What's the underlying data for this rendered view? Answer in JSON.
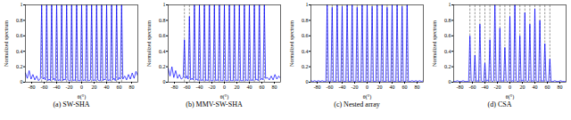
{
  "chart_data": [
    {
      "type": "line",
      "title": "(a) SW-SHA",
      "x_label": "θ(°)",
      "y_label": "Normalized spectrum",
      "color": "#0000ff",
      "xlim": [
        -90,
        90
      ],
      "xticks": [
        -80,
        -60,
        -40,
        -20,
        0,
        20,
        40,
        60,
        80
      ],
      "ylim": [
        0,
        1
      ],
      "yticks": [
        0,
        0.2,
        0.4,
        0.6,
        0.8,
        1
      ],
      "reference_angles": [
        -64,
        -56,
        -48,
        -40,
        -32,
        -24,
        -16,
        -8,
        0,
        8,
        16,
        24,
        32,
        40,
        48,
        56,
        64
      ],
      "x": [
        -90,
        -87,
        -84,
        -81,
        -78,
        -75,
        -72,
        -69,
        -66,
        -64,
        -62,
        -60,
        -58,
        -56,
        -54,
        -52,
        -50,
        -48,
        -46,
        -44,
        -42,
        -40,
        -38,
        -36,
        -34,
        -32,
        -30,
        -28,
        -26,
        -24,
        -22,
        -20,
        -18,
        -16,
        -14,
        -12,
        -10,
        -8,
        -6,
        -4,
        -2,
        0,
        2,
        4,
        6,
        8,
        10,
        12,
        14,
        16,
        18,
        20,
        22,
        24,
        26,
        28,
        30,
        32,
        34,
        36,
        38,
        40,
        42,
        44,
        46,
        48,
        50,
        52,
        54,
        56,
        58,
        60,
        62,
        64,
        66,
        69,
        72,
        75,
        78,
        81,
        84,
        87,
        90
      ],
      "values": [
        0.12,
        0.05,
        0.15,
        0.04,
        0.1,
        0.03,
        0.08,
        0.02,
        0.05,
        1,
        0.04,
        0.06,
        0.03,
        1,
        0.02,
        0.04,
        0.02,
        1,
        0.03,
        0.05,
        0.02,
        1,
        0.02,
        0.03,
        0.02,
        1,
        0.02,
        0.04,
        0.03,
        1,
        0.03,
        0.02,
        0.02,
        1,
        0.02,
        0.03,
        0.02,
        1,
        0.02,
        0.02,
        0.02,
        1,
        0.02,
        0.03,
        0.02,
        1,
        0.02,
        0.02,
        0.03,
        1,
        0.02,
        0.03,
        0.02,
        1,
        0.03,
        0.02,
        0.02,
        1,
        0.02,
        0.04,
        0.03,
        1,
        0.02,
        0.03,
        0.02,
        1,
        0.03,
        0.05,
        0.02,
        1,
        0.03,
        0.06,
        0.04,
        1,
        0.04,
        0.08,
        0.03,
        0.1,
        0.04,
        0.12,
        0.05,
        0.14,
        0.08
      ]
    },
    {
      "type": "line",
      "title": "(b) MMV-SW-SHA",
      "x_label": "θ(°)",
      "y_label": "Normalized spectrum",
      "color": "#0000ff",
      "xlim": [
        -90,
        90
      ],
      "xticks": [
        -80,
        -60,
        -40,
        -20,
        0,
        20,
        40,
        60,
        80
      ],
      "ylim": [
        0,
        1
      ],
      "yticks": [
        0,
        0.2,
        0.4,
        0.6,
        0.8,
        1
      ],
      "reference_angles": [
        -64,
        -56,
        -48,
        -40,
        -32,
        -24,
        -16,
        -8,
        0,
        8,
        16,
        24,
        32,
        40,
        48,
        56,
        64
      ],
      "x": [
        -90,
        -87,
        -84,
        -81,
        -78,
        -75,
        -72,
        -69,
        -66,
        -64,
        -62,
        -60,
        -58,
        -56,
        -54,
        -52,
        -50,
        -48,
        -46,
        -44,
        -42,
        -40,
        -38,
        -36,
        -34,
        -32,
        -30,
        -28,
        -26,
        -24,
        -22,
        -20,
        -18,
        -16,
        -14,
        -12,
        -10,
        -8,
        -6,
        -4,
        -2,
        0,
        2,
        4,
        6,
        8,
        10,
        12,
        14,
        16,
        18,
        20,
        22,
        24,
        26,
        28,
        30,
        32,
        34,
        36,
        38,
        40,
        42,
        44,
        46,
        48,
        50,
        52,
        54,
        56,
        58,
        60,
        62,
        64,
        66,
        69,
        72,
        75,
        78,
        81,
        84,
        87,
        90
      ],
      "values": [
        0.18,
        0.08,
        0.2,
        0.06,
        0.15,
        0.05,
        0.1,
        0.04,
        0.06,
        0.55,
        0.05,
        0.08,
        0.04,
        0.85,
        0.03,
        0.05,
        0.03,
        1,
        0.03,
        0.04,
        0.02,
        1,
        0.02,
        0.03,
        0.02,
        1,
        0.02,
        0.03,
        0.02,
        1,
        0.02,
        0.02,
        0.02,
        1,
        0.02,
        0.03,
        0.02,
        1,
        0.02,
        0.02,
        0.02,
        1,
        0.02,
        0.02,
        0.02,
        1,
        0.02,
        0.02,
        0.02,
        1,
        0.02,
        0.03,
        0.02,
        1,
        0.02,
        0.02,
        0.02,
        1,
        0.02,
        0.03,
        0.02,
        1,
        0.02,
        0.03,
        0.02,
        1,
        0.03,
        0.04,
        0.02,
        1,
        0.03,
        0.05,
        0.03,
        1,
        0.05,
        0.06,
        0.03,
        0.08,
        0.03,
        0.1,
        0.04,
        0.08,
        0.05
      ]
    },
    {
      "type": "line",
      "title": "(c) Nested array",
      "x_label": "θ(°)",
      "y_label": "Normalized spectrum",
      "color": "#0000ff",
      "xlim": [
        -90,
        90
      ],
      "xticks": [
        -80,
        -60,
        -40,
        -20,
        0,
        20,
        40,
        60,
        80
      ],
      "ylim": [
        0,
        1
      ],
      "yticks": [
        0,
        0.2,
        0.4,
        0.6,
        0.8,
        1
      ],
      "reference_angles": [
        -64,
        -56,
        -48,
        -40,
        -32,
        -24,
        -16,
        -8,
        0,
        8,
        16,
        24,
        32,
        40,
        48,
        56,
        64
      ],
      "x": [
        -90,
        -87,
        -84,
        -81,
        -78,
        -75,
        -72,
        -69,
        -66,
        -64,
        -62,
        -60,
        -58,
        -56,
        -54,
        -52,
        -50,
        -48,
        -46,
        -44,
        -42,
        -40,
        -38,
        -36,
        -34,
        -32,
        -30,
        -28,
        -26,
        -24,
        -22,
        -20,
        -18,
        -16,
        -14,
        -12,
        -10,
        -8,
        -6,
        -4,
        -2,
        0,
        2,
        4,
        6,
        8,
        10,
        12,
        14,
        16,
        18,
        20,
        22,
        24,
        26,
        28,
        30,
        32,
        34,
        36,
        38,
        40,
        42,
        44,
        46,
        48,
        50,
        52,
        54,
        56,
        58,
        60,
        62,
        64,
        66,
        69,
        72,
        75,
        78,
        81,
        84,
        87,
        90
      ],
      "values": [
        0.02,
        0.01,
        0.02,
        0.01,
        0.02,
        0.01,
        0.02,
        0.01,
        0.01,
        1,
        0.01,
        0.01,
        0.01,
        0.97,
        0.01,
        0.01,
        0.01,
        1,
        0.01,
        0.01,
        0.01,
        0.98,
        0.01,
        0.01,
        0.01,
        1,
        0.01,
        0.01,
        0.01,
        1,
        0.01,
        0.01,
        0.01,
        0.97,
        0.01,
        0.01,
        0.01,
        1,
        0.01,
        0.01,
        0.01,
        1,
        0.01,
        0.01,
        0.01,
        0.98,
        0.01,
        0.01,
        0.01,
        1,
        0.01,
        0.01,
        0.01,
        1,
        0.01,
        0.01,
        0.01,
        0.97,
        0.01,
        0.01,
        0.01,
        1,
        0.01,
        0.01,
        0.01,
        1,
        0.01,
        0.01,
        0.01,
        0.98,
        0.01,
        0.01,
        0.01,
        1,
        0.01,
        0.01,
        0.02,
        0.01,
        0.02,
        0.01,
        0.02,
        0.01,
        0.02
      ]
    },
    {
      "type": "line",
      "title": "(d) CSA",
      "x_label": "θ(°)",
      "y_label": "Normalized spectrum",
      "color": "#0000ff",
      "xlim": [
        -90,
        90
      ],
      "xticks": [
        -80,
        -60,
        -40,
        -20,
        0,
        20,
        40,
        60,
        80
      ],
      "ylim": [
        0,
        1
      ],
      "yticks": [
        0,
        0.2,
        0.4,
        0.6,
        0.8,
        1
      ],
      "reference_angles": [
        -64,
        -56,
        -48,
        -40,
        -32,
        -24,
        -16,
        -8,
        0,
        8,
        16,
        24,
        32,
        40,
        48,
        56,
        64
      ],
      "x": [
        -90,
        -87,
        -84,
        -81,
        -78,
        -75,
        -72,
        -69,
        -66,
        -64,
        -62,
        -60,
        -58,
        -56,
        -54,
        -52,
        -50,
        -48,
        -46,
        -44,
        -42,
        -40,
        -38,
        -36,
        -34,
        -32,
        -30,
        -28,
        -26,
        -24,
        -22,
        -20,
        -18,
        -16,
        -14,
        -12,
        -10,
        -8,
        -6,
        -4,
        -2,
        0,
        2,
        4,
        6,
        8,
        10,
        12,
        14,
        16,
        18,
        20,
        22,
        24,
        26,
        28,
        30,
        32,
        34,
        36,
        38,
        40,
        42,
        44,
        46,
        48,
        50,
        52,
        54,
        56,
        58,
        60,
        62,
        64,
        66,
        69,
        72,
        75,
        78,
        81,
        84,
        87,
        90
      ],
      "values": [
        0.01,
        0.01,
        0.02,
        0.01,
        0.01,
        0.02,
        0.01,
        0.01,
        0.01,
        0.6,
        0.02,
        0.01,
        0.02,
        0.35,
        0.01,
        0.02,
        0.01,
        0.75,
        0.02,
        0.01,
        0.01,
        0.25,
        0.01,
        0.03,
        0.01,
        0.55,
        0.02,
        0.01,
        0.02,
        1,
        0.02,
        0.01,
        0.01,
        0.7,
        0.01,
        0.02,
        0.01,
        0.45,
        0.02,
        0.01,
        0.02,
        0.85,
        0.01,
        0.02,
        0.01,
        1,
        0.02,
        0.01,
        0.01,
        0.6,
        0.01,
        0.03,
        0.01,
        0.9,
        0.02,
        0.01,
        0.02,
        0.75,
        0.01,
        0.02,
        0.01,
        0.95,
        0.02,
        0.01,
        0.01,
        0.8,
        0.01,
        0.02,
        0.01,
        0.5,
        0.02,
        0.01,
        0.01,
        0.3,
        0.01,
        0.01,
        0.02,
        0.01,
        0.01,
        0.02,
        0.01,
        0.01,
        0.01
      ]
    }
  ]
}
